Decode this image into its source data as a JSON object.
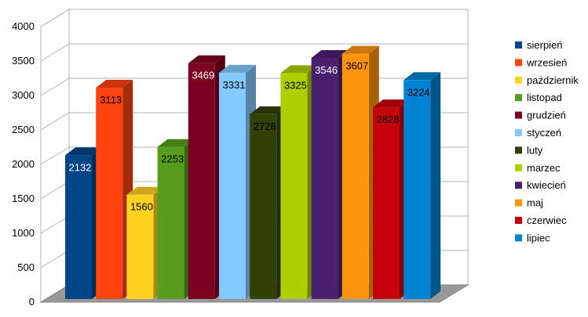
{
  "chart_data": {
    "type": "bar",
    "style": "3d-columns",
    "title": "",
    "xlabel": "",
    "ylabel": "",
    "ylim": [
      0,
      4000
    ],
    "y_ticks": [
      "0",
      "500",
      "1000",
      "1500",
      "2000",
      "2500",
      "3000",
      "3500",
      "4000"
    ],
    "grid": true,
    "legend_position": "right",
    "categories": [
      "sierpień",
      "wrzesień",
      "październik",
      "listopad",
      "grudzień",
      "styczeń",
      "luty",
      "marzec",
      "kwiecień",
      "maj",
      "czerwiec",
      "lipiec"
    ],
    "values": [
      2132,
      3113,
      1560,
      2253,
      3469,
      3331,
      2728,
      3325,
      3546,
      3607,
      2828,
      3224
    ],
    "data_labels": [
      "2132",
      "3113",
      "1560",
      "2253",
      "3469",
      "3331",
      "2728",
      "3325",
      "3546",
      "3607",
      "2828",
      "3224"
    ],
    "colors": [
      "#004586",
      "#ff420e",
      "#ffd320",
      "#579d1c",
      "#7e0021",
      "#83caff",
      "#314004",
      "#aecf00",
      "#4b1f6f",
      "#ff950e",
      "#c5000b",
      "#0084d1"
    ],
    "label_colors": [
      "#ffffff",
      "#000000",
      "#000000",
      "#000000",
      "#ffffff",
      "#000000",
      "#000000",
      "#000000",
      "#ffffff",
      "#000000",
      "#000000",
      "#000000"
    ]
  }
}
